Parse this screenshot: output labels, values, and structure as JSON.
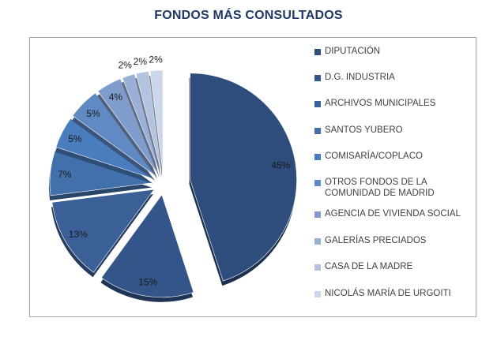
{
  "chart_data": {
    "type": "pie",
    "title": "FONDOS MÁS CONSULTADOS",
    "categories": [
      "DIPUTACIÓN",
      "D.G. INDUSTRIA",
      "ARCHIVOS MUNICIPALES",
      "SANTOS YUBERO",
      "COMISARÍA/COPLACO",
      "OTROS FONDOS DE LA COMUNIDAD DE MADRID",
      "AGENCIA DE VIVIENDA SOCIAL",
      "GALERÍAS PRECIADOS",
      "CASA DE LA MADRE",
      "NICOLÁS MARÍA DE URGOITI"
    ],
    "values": [
      45,
      15,
      13,
      7,
      5,
      5,
      4,
      2,
      2,
      2
    ],
    "data_labels": [
      "45%",
      "15%",
      "13%",
      "7%",
      "5%",
      "5%",
      "4%",
      "2%",
      "2%",
      "2%"
    ],
    "legend_position": "right",
    "exploded": true,
    "colors": [
      "#2f4d7c",
      "#34558a",
      "#3b6097",
      "#4170ab",
      "#4a7dbd",
      "#5f8ac4",
      "#7f9ccc",
      "#9bb0d6",
      "#b4c3e0",
      "#ccd6ea"
    ]
  }
}
